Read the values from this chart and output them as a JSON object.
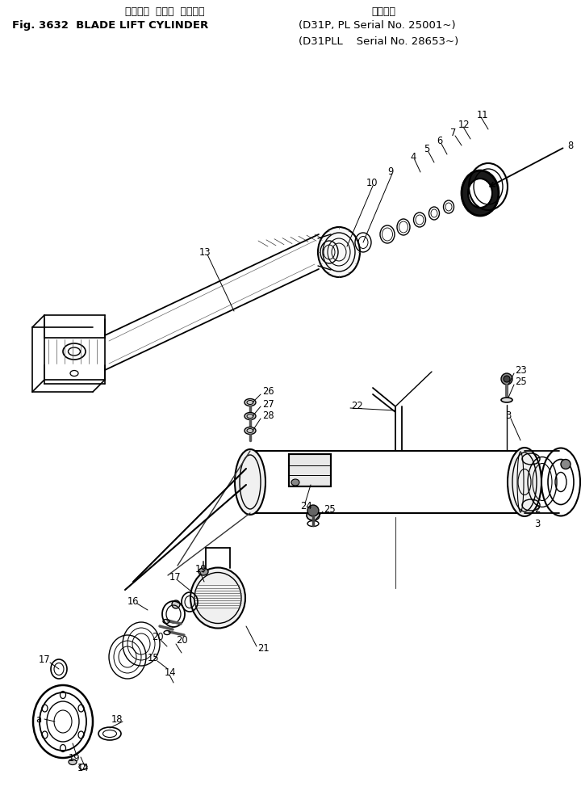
{
  "title_jp1": "ブレード  リフト  シリンダ",
  "title_jp2": "適用号機",
  "title_en": "Fig. 3632  BLADE LIFT CYLINDER",
  "title_model1": "(D31P, PL Serial No. 25001~)",
  "title_model2": "(D31PLL    Serial No. 28653~)",
  "bg_color": "#ffffff",
  "line_color": "#000000",
  "fig_width": 7.2,
  "fig_height": 10.0,
  "dpi": 100
}
